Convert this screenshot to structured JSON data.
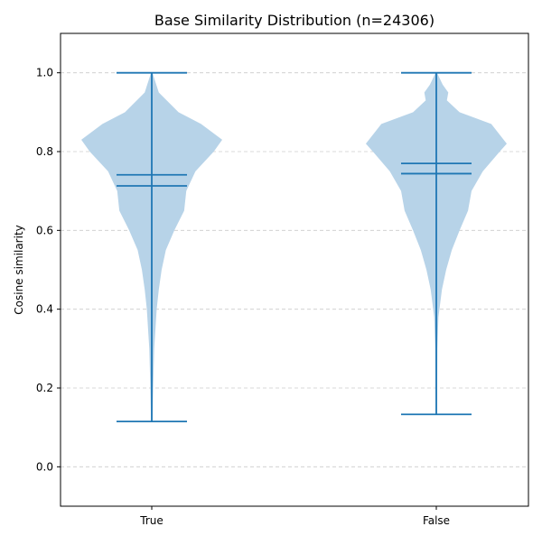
{
  "chart_data": {
    "type": "violin",
    "title": "Base Similarity Distribution (n=24306)",
    "xlabel": "",
    "ylabel": "Cosine similarity",
    "ylim": [
      -0.1,
      1.1
    ],
    "yticks": [
      0.0,
      0.2,
      0.4,
      0.6,
      0.8,
      1.0
    ],
    "ytick_labels": [
      "0.0",
      "0.2",
      "0.4",
      "0.6",
      "0.8",
      "1.0"
    ],
    "categories": [
      "True",
      "False"
    ],
    "grid": "y-dashed",
    "colors": {
      "body": "#b7d3e8",
      "line": "#1f77b4",
      "grid": "#cccccc"
    },
    "series": [
      {
        "category": "True",
        "min": 0.115,
        "max": 1.0,
        "mean": 0.741,
        "median": 0.713,
        "density": [
          [
            0.115,
            0.01
          ],
          [
            0.2,
            0.02
          ],
          [
            0.3,
            0.035
          ],
          [
            0.4,
            0.07
          ],
          [
            0.45,
            0.1
          ],
          [
            0.5,
            0.14
          ],
          [
            0.55,
            0.2
          ],
          [
            0.6,
            0.32
          ],
          [
            0.65,
            0.46
          ],
          [
            0.7,
            0.49
          ],
          [
            0.75,
            0.62
          ],
          [
            0.8,
            0.88
          ],
          [
            0.83,
            1.0
          ],
          [
            0.87,
            0.7
          ],
          [
            0.9,
            0.38
          ],
          [
            0.95,
            0.1
          ],
          [
            1.0,
            0.01
          ]
        ]
      },
      {
        "category": "False",
        "min": 0.133,
        "max": 1.0,
        "mean": 0.77,
        "median": 0.744,
        "density": [
          [
            0.133,
            0.01
          ],
          [
            0.3,
            0.015
          ],
          [
            0.38,
            0.03
          ],
          [
            0.45,
            0.08
          ],
          [
            0.5,
            0.14
          ],
          [
            0.55,
            0.22
          ],
          [
            0.6,
            0.33
          ],
          [
            0.65,
            0.45
          ],
          [
            0.7,
            0.5
          ],
          [
            0.75,
            0.66
          ],
          [
            0.8,
            0.9
          ],
          [
            0.82,
            1.0
          ],
          [
            0.87,
            0.78
          ],
          [
            0.9,
            0.33
          ],
          [
            0.93,
            0.15
          ],
          [
            0.95,
            0.17
          ],
          [
            0.97,
            0.09
          ],
          [
            1.0,
            0.01
          ]
        ]
      }
    ]
  }
}
